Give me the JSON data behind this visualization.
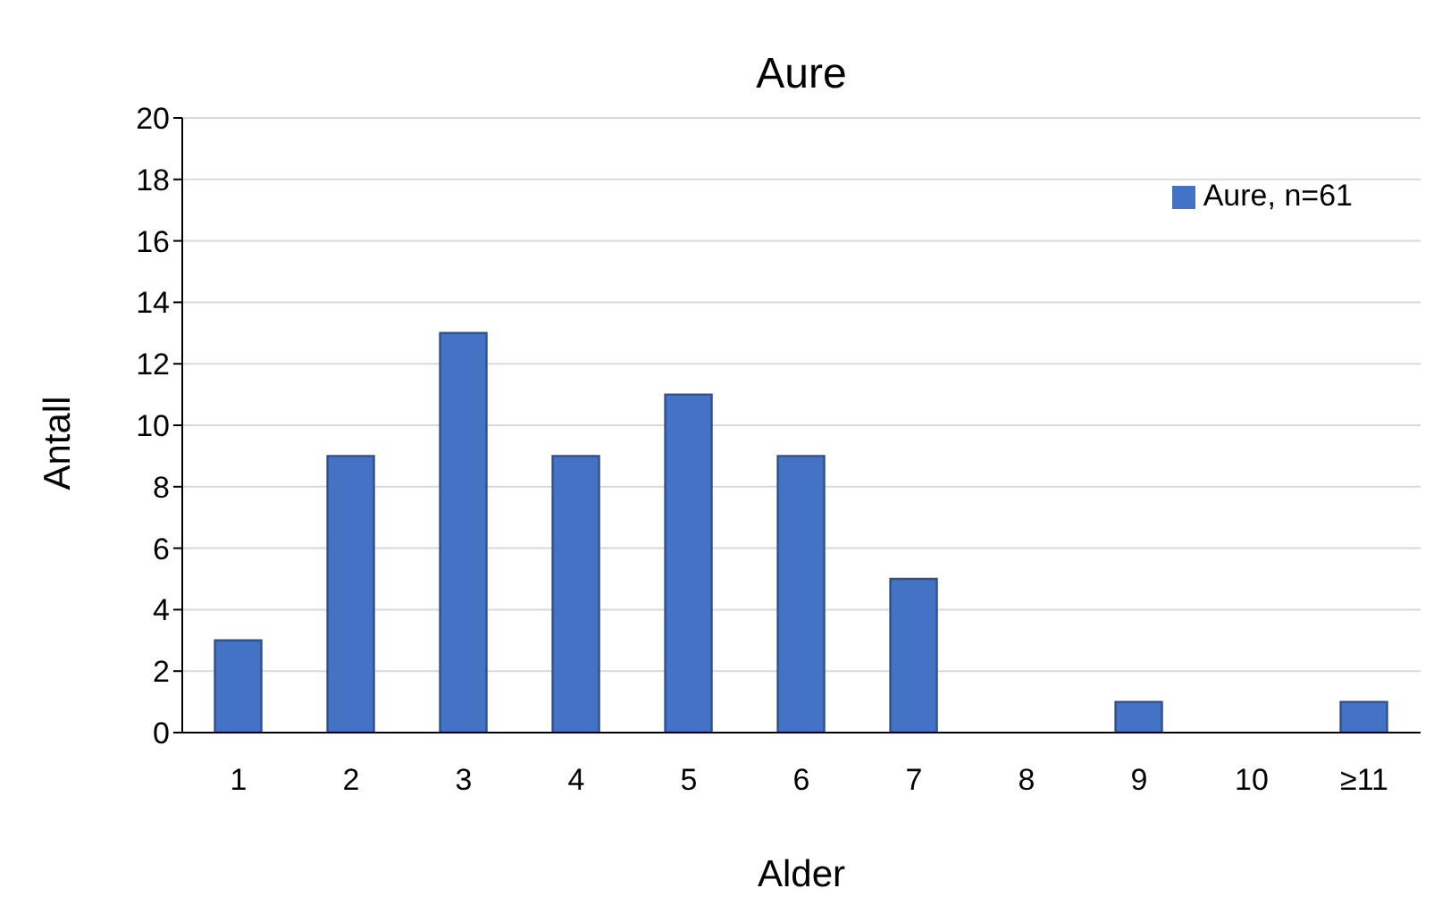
{
  "chart_data": {
    "type": "bar",
    "title": "Aure",
    "xlabel": "Alder",
    "ylabel": "Antall",
    "categories": [
      "1",
      "2",
      "3",
      "4",
      "5",
      "6",
      "7",
      "8",
      "9",
      "10",
      "≥11"
    ],
    "series": [
      {
        "name": "Aure, n=61",
        "color": "#4472c4",
        "values": [
          3,
          9,
          13,
          9,
          11,
          9,
          5,
          0,
          1,
          0,
          1
        ]
      }
    ],
    "ylim": [
      0,
      20
    ],
    "yticks": [
      0,
      2,
      4,
      6,
      8,
      10,
      12,
      14,
      16,
      18,
      20
    ],
    "grid": "y",
    "legend": "top right"
  }
}
